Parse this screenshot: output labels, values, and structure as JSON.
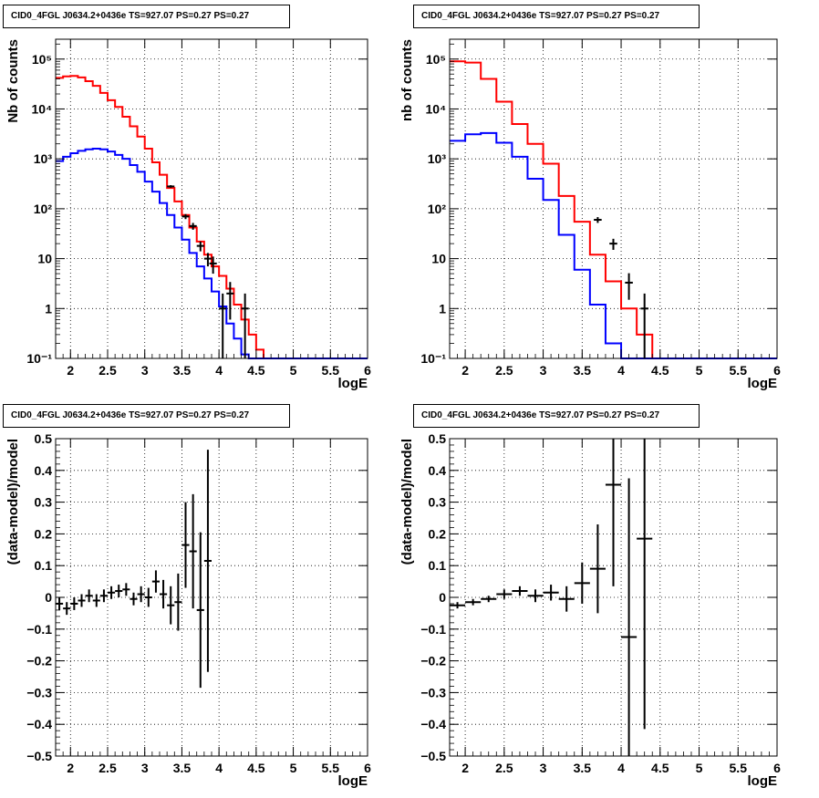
{
  "panels": [
    {
      "id": "tl",
      "title": "CID0_4FGL J0634.2+0436e TS=927.07 PS=0.27 PS=0.27",
      "type": "line",
      "yscale": "log",
      "xlim": [
        1.8,
        6.0
      ],
      "ylim": [
        0.1,
        250000
      ],
      "xlabel": "logE",
      "ylabel": "Nb of counts",
      "xticks": [
        2,
        2.5,
        3,
        3.5,
        4,
        4.5,
        5,
        5.5,
        6
      ],
      "xtick_labels": [
        "2",
        "2.5",
        "3",
        "3.5",
        "4",
        "4.5",
        "5",
        "5.5",
        "6"
      ],
      "yticks": [
        0.1,
        1,
        10,
        100,
        1000,
        10000,
        100000
      ],
      "ytick_labels": [
        "10⁻¹",
        "1",
        "10",
        "10²",
        "10³",
        "10⁴",
        "10⁵"
      ],
      "grid": true,
      "bin_edges": [
        1.8,
        1.9,
        2.0,
        2.1,
        2.2,
        2.3,
        2.4,
        2.5,
        2.6,
        2.7,
        2.8,
        2.9,
        3.0,
        3.1,
        3.2,
        3.3,
        3.4,
        3.5,
        3.6,
        3.7,
        3.8,
        3.9,
        4.0,
        4.1,
        4.2,
        4.3,
        4.4,
        4.5,
        4.6,
        4.7,
        4.8,
        4.9,
        5.0,
        5.1,
        5.2,
        5.3,
        5.4,
        5.5,
        5.6,
        5.7,
        5.8,
        5.9,
        6.0
      ],
      "series": [
        {
          "color": "#ff0000",
          "values": [
            42000,
            45000,
            46000,
            43000,
            36000,
            29000,
            21000,
            15000,
            11000,
            7000,
            4500,
            2800,
            1600,
            850,
            480,
            260,
            140,
            75,
            42,
            22,
            12,
            7,
            4.5,
            2.5,
            1.2,
            0.6,
            0.3,
            0.15,
            0.1,
            0.1,
            0.1,
            0.1,
            0.1,
            0.1,
            0.1,
            0.1,
            0.1,
            0.1,
            0.1,
            0.1,
            0.1,
            0.1
          ]
        },
        {
          "color": "#0000ff",
          "values": [
            900,
            1100,
            1300,
            1450,
            1550,
            1600,
            1550,
            1400,
            1200,
            1000,
            750,
            550,
            350,
            220,
            130,
            75,
            42,
            24,
            13,
            7,
            4,
            2.2,
            1.1,
            0.5,
            0.25,
            0.12,
            0.1,
            0.1,
            0.1,
            0.1,
            0.1,
            0.1,
            0.1,
            0.1,
            0.1,
            0.1,
            0.1,
            0.1,
            0.1,
            0.1,
            0.1,
            0.1
          ]
        }
      ],
      "points": [
        {
          "x": 3.35,
          "y": 280,
          "yerr": 17
        },
        {
          "x": 3.55,
          "y": 70,
          "yerr": 8
        },
        {
          "x": 3.65,
          "y": 45,
          "yerr": 7
        },
        {
          "x": 3.75,
          "y": 18,
          "yerr": 4
        },
        {
          "x": 3.85,
          "y": 10,
          "yerr": 3
        },
        {
          "x": 3.92,
          "y": 8,
          "yerr": 3
        },
        {
          "x": 4.05,
          "y": 1,
          "yerr": 1
        },
        {
          "x": 4.15,
          "y": 2,
          "yerr": 1.4
        },
        {
          "x": 4.35,
          "y": 1,
          "yerr": 1
        }
      ]
    },
    {
      "id": "tr",
      "title": "CID0_4FGL J0634.2+0436e TS=927.07 PS=0.27 PS=0.27",
      "type": "line",
      "yscale": "log",
      "xlim": [
        1.8,
        6.0
      ],
      "ylim": [
        0.1,
        250000
      ],
      "xlabel": "logE",
      "ylabel": "nb of counts",
      "xticks": [
        2,
        2.5,
        3,
        3.5,
        4,
        4.5,
        5,
        5.5,
        6
      ],
      "xtick_labels": [
        "2",
        "2.5",
        "3",
        "3.5",
        "4",
        "4.5",
        "5",
        "5.5",
        "6"
      ],
      "yticks": [
        0.1,
        1,
        10,
        100,
        1000,
        10000,
        100000
      ],
      "ytick_labels": [
        "10⁻¹",
        "1",
        "10",
        "10²",
        "10³",
        "10⁴",
        "10⁵"
      ],
      "grid": true,
      "bin_edges": [
        1.8,
        2.0,
        2.2,
        2.4,
        2.6,
        2.8,
        3.0,
        3.2,
        3.4,
        3.6,
        3.8,
        4.0,
        4.2,
        4.4,
        4.6,
        4.8,
        5.0,
        5.2,
        5.4,
        5.6,
        5.8,
        6.0
      ],
      "series": [
        {
          "color": "#ff0000",
          "values": [
            90000,
            85000,
            40000,
            14000,
            5000,
            2000,
            800,
            180,
            55,
            12,
            3.5,
            1,
            0.3,
            0.1,
            0.1,
            0.1,
            0.1,
            0.1,
            0.1,
            0.1,
            0.1
          ]
        },
        {
          "color": "#0000ff",
          "values": [
            2300,
            3100,
            3300,
            2100,
            1100,
            400,
            150,
            30,
            6,
            1.2,
            0.2,
            0.1,
            0.1,
            0.1,
            0.1,
            0.1,
            0.1,
            0.1,
            0.1,
            0.1,
            0.1
          ]
        }
      ],
      "points": [
        {
          "x": 3.7,
          "y": 60,
          "yerr": 8
        },
        {
          "x": 3.9,
          "y": 20,
          "yerr": 5
        },
        {
          "x": 4.1,
          "y": 3.3,
          "yerr": 1.8
        },
        {
          "x": 4.3,
          "y": 1,
          "yerr": 1
        }
      ]
    },
    {
      "id": "bl",
      "title": "CID0_4FGL J0634.2+0436e TS=927.07 PS=0.27 PS=0.27",
      "type": "scatter",
      "yscale": "linear",
      "xlim": [
        1.8,
        6.0
      ],
      "ylim": [
        -0.5,
        0.5
      ],
      "xlabel": "logE",
      "ylabel": "(data-model)/model",
      "xticks": [
        2,
        2.5,
        3,
        3.5,
        4,
        4.5,
        5,
        5.5,
        6
      ],
      "xtick_labels": [
        "2",
        "2.5",
        "3",
        "3.5",
        "4",
        "4.5",
        "5",
        "5.5",
        "6"
      ],
      "yticks": [
        -0.5,
        -0.4,
        -0.3,
        -0.2,
        -0.1,
        0,
        0.1,
        0.2,
        0.3,
        0.4,
        0.5
      ],
      "ytick_labels": [
        "−0.5",
        "−0.4",
        "−0.3",
        "−0.2",
        "−0.1",
        "0",
        "0.1",
        "0.2",
        "0.3",
        "0.4",
        "0.5"
      ],
      "grid": true,
      "points": [
        {
          "x": 1.85,
          "xerr": 0.05,
          "y": -0.02,
          "yerr": 0.02
        },
        {
          "x": 1.95,
          "xerr": 0.05,
          "y": -0.035,
          "yerr": 0.02
        },
        {
          "x": 2.05,
          "xerr": 0.05,
          "y": -0.02,
          "yerr": 0.02
        },
        {
          "x": 2.15,
          "xerr": 0.05,
          "y": -0.01,
          "yerr": 0.02
        },
        {
          "x": 2.25,
          "xerr": 0.05,
          "y": 0.005,
          "yerr": 0.02
        },
        {
          "x": 2.35,
          "xerr": 0.05,
          "y": -0.01,
          "yerr": 0.02
        },
        {
          "x": 2.45,
          "xerr": 0.05,
          "y": 0.005,
          "yerr": 0.02
        },
        {
          "x": 2.55,
          "xerr": 0.05,
          "y": 0.015,
          "yerr": 0.02
        },
        {
          "x": 2.65,
          "xerr": 0.05,
          "y": 0.02,
          "yerr": 0.02
        },
        {
          "x": 2.75,
          "xerr": 0.05,
          "y": 0.025,
          "yerr": 0.02
        },
        {
          "x": 2.85,
          "xerr": 0.05,
          "y": -0.005,
          "yerr": 0.02
        },
        {
          "x": 2.95,
          "xerr": 0.05,
          "y": 0.01,
          "yerr": 0.025
        },
        {
          "x": 3.05,
          "xerr": 0.05,
          "y": 0.0,
          "yerr": 0.03
        },
        {
          "x": 3.15,
          "xerr": 0.05,
          "y": 0.05,
          "yerr": 0.035
        },
        {
          "x": 3.25,
          "xerr": 0.05,
          "y": 0.01,
          "yerr": 0.045
        },
        {
          "x": 3.35,
          "xerr": 0.05,
          "y": -0.025,
          "yerr": 0.06
        },
        {
          "x": 3.45,
          "xerr": 0.05,
          "y": -0.015,
          "yerr": 0.09
        },
        {
          "x": 3.55,
          "xerr": 0.05,
          "y": 0.165,
          "yerr": 0.135
        },
        {
          "x": 3.65,
          "xerr": 0.05,
          "y": 0.145,
          "yerr": 0.18
        },
        {
          "x": 3.75,
          "xerr": 0.05,
          "y": -0.04,
          "yerr": 0.245
        },
        {
          "x": 3.85,
          "xerr": 0.05,
          "y": 0.115,
          "yerr": 0.35
        }
      ]
    },
    {
      "id": "br",
      "title": "CID0_4FGL J0634.2+0436e TS=927.07 PS=0.27 PS=0.27",
      "type": "scatter",
      "yscale": "linear",
      "xlim": [
        1.8,
        6.0
      ],
      "ylim": [
        -0.5,
        0.5
      ],
      "xlabel": "logE",
      "ylabel": "(data-model)/model",
      "xticks": [
        2,
        2.5,
        3,
        3.5,
        4,
        4.5,
        5,
        5.5,
        6
      ],
      "xtick_labels": [
        "2",
        "2.5",
        "3",
        "3.5",
        "4",
        "4.5",
        "5",
        "5.5",
        "6"
      ],
      "yticks": [
        -0.5,
        -0.4,
        -0.3,
        -0.2,
        -0.1,
        0,
        0.1,
        0.2,
        0.3,
        0.4,
        0.5
      ],
      "ytick_labels": [
        "−0.5",
        "−0.4",
        "−0.3",
        "−0.2",
        "−0.1",
        "0",
        "0.1",
        "0.2",
        "0.3",
        "0.4",
        "0.5"
      ],
      "grid": true,
      "points": [
        {
          "x": 1.9,
          "xerr": 0.1,
          "y": -0.025,
          "yerr": 0.01
        },
        {
          "x": 2.1,
          "xerr": 0.1,
          "y": -0.015,
          "yerr": 0.01
        },
        {
          "x": 2.3,
          "xerr": 0.1,
          "y": -0.005,
          "yerr": 0.01
        },
        {
          "x": 2.5,
          "xerr": 0.1,
          "y": 0.01,
          "yerr": 0.015
        },
        {
          "x": 2.7,
          "xerr": 0.1,
          "y": 0.02,
          "yerr": 0.015
        },
        {
          "x": 2.9,
          "xerr": 0.1,
          "y": 0.005,
          "yerr": 0.02
        },
        {
          "x": 3.1,
          "xerr": 0.1,
          "y": 0.015,
          "yerr": 0.025
        },
        {
          "x": 3.3,
          "xerr": 0.1,
          "y": -0.005,
          "yerr": 0.04
        },
        {
          "x": 3.5,
          "xerr": 0.1,
          "y": 0.045,
          "yerr": 0.065
        },
        {
          "x": 3.7,
          "xerr": 0.1,
          "y": 0.09,
          "yerr": 0.14
        },
        {
          "x": 3.9,
          "xerr": 0.1,
          "y": 0.355,
          "yerr": 0.32
        },
        {
          "x": 4.1,
          "xerr": 0.1,
          "y": -0.125,
          "yerr": 0.5
        },
        {
          "x": 4.3,
          "xerr": 0.1,
          "y": 0.185,
          "yerr": 0.6
        }
      ]
    }
  ]
}
